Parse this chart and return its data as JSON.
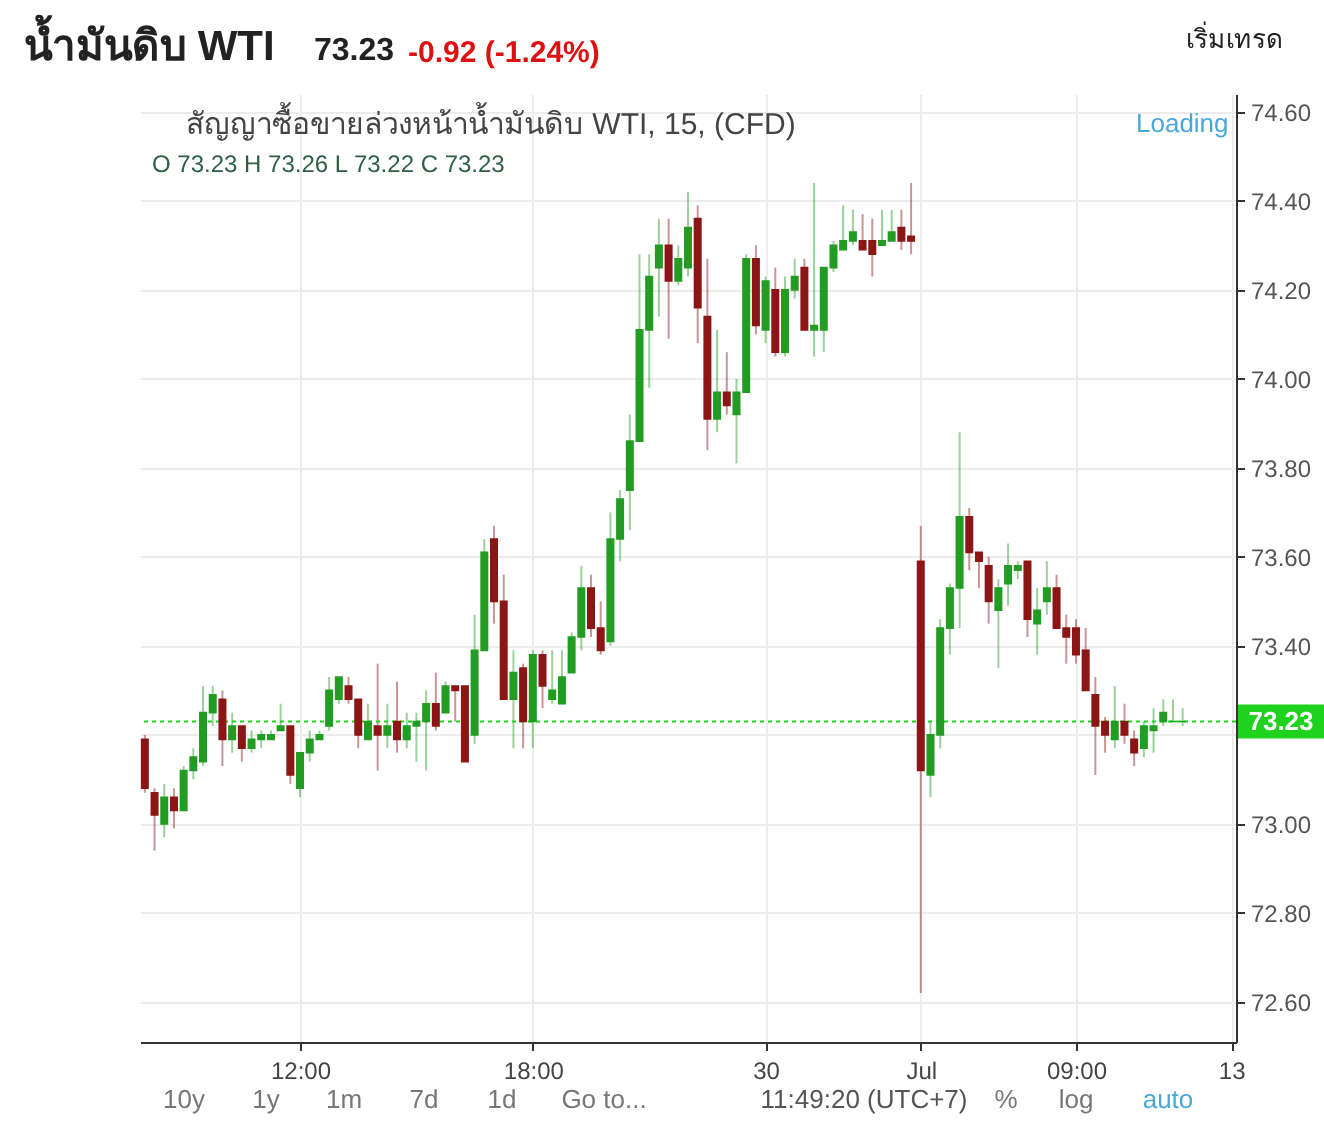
{
  "chart_data": {
    "type": "candlestick",
    "title": "น้ำมันดิบ WTI",
    "subtitle": "สัญญาซื้อขายล่วงหน้าน้ำมันดิบ WTI, 15, (CFD)",
    "annotations": [
      "73.23",
      "-0.92 (-1.24%)",
      "เริ่มเทรด",
      "O 73.23 H 73.26 L 73.22 C 73.23",
      "Loading",
      "10y",
      "1y",
      "1m",
      "7d",
      "1d",
      "Go to...",
      "11:49:20 (UTC+7)",
      "%",
      "log",
      "auto"
    ],
    "categories": [
      null,
      null,
      null,
      null,
      null,
      null,
      null,
      null,
      null,
      null,
      null,
      null,
      null,
      null,
      null,
      null,
      "12:00",
      null,
      null,
      null,
      null,
      null,
      null,
      null,
      null,
      null,
      null,
      null,
      null,
      null,
      null,
      null,
      null,
      null,
      null,
      null,
      null,
      null,
      null,
      null,
      "18:00",
      null,
      null,
      null,
      null,
      null,
      null,
      null,
      null,
      null,
      null,
      null,
      null,
      null,
      null,
      null,
      null,
      null,
      null,
      null,
      null,
      null,
      null,
      null,
      "30",
      null,
      null,
      null,
      null,
      null,
      null,
      null,
      null,
      null,
      null,
      null,
      null,
      null,
      null,
      null,
      "Jul",
      null,
      null,
      null,
      null,
      null,
      null,
      null,
      null,
      null,
      null,
      null,
      null,
      null,
      null,
      null,
      "09:00",
      null,
      null,
      null,
      null,
      null,
      null,
      null,
      null,
      null,
      null,
      null,
      null,
      null,
      null,
      null,
      "13"
    ],
    "ohlc": [
      [
        73.19,
        73.2,
        73.07,
        73.08
      ],
      [
        73.07,
        73.08,
        72.94,
        73.02
      ],
      [
        73.0,
        73.09,
        72.97,
        73.06
      ],
      [
        73.06,
        73.08,
        72.99,
        73.03
      ],
      [
        73.03,
        73.13,
        73.03,
        73.12
      ],
      [
        73.12,
        73.17,
        73.1,
        73.15
      ],
      [
        73.14,
        73.31,
        73.13,
        73.25
      ],
      [
        73.25,
        73.31,
        73.22,
        73.29
      ],
      [
        73.28,
        73.3,
        73.13,
        73.19
      ],
      [
        73.19,
        73.25,
        73.16,
        73.22
      ],
      [
        73.22,
        73.22,
        73.14,
        73.17
      ],
      [
        73.17,
        73.21,
        73.16,
        73.19
      ],
      [
        73.19,
        73.21,
        73.17,
        73.2
      ],
      [
        73.19,
        73.21,
        73.19,
        73.2
      ],
      [
        73.21,
        73.27,
        73.21,
        73.22
      ],
      [
        73.22,
        73.22,
        73.09,
        73.11
      ],
      [
        73.08,
        73.16,
        73.06,
        73.16
      ],
      [
        73.16,
        73.21,
        73.14,
        73.19
      ],
      [
        73.19,
        73.21,
        73.19,
        73.2
      ],
      [
        73.22,
        73.33,
        73.21,
        73.3
      ],
      [
        73.28,
        73.33,
        73.27,
        73.33
      ],
      [
        73.31,
        73.33,
        73.27,
        73.28
      ],
      [
        73.28,
        73.28,
        73.17,
        73.2
      ],
      [
        73.19,
        73.27,
        73.19,
        73.23
      ],
      [
        73.22,
        73.36,
        73.12,
        73.2
      ],
      [
        73.2,
        73.27,
        73.17,
        73.22
      ],
      [
        73.23,
        73.32,
        73.16,
        73.19
      ],
      [
        73.19,
        73.25,
        73.17,
        73.22
      ],
      [
        73.22,
        73.25,
        73.14,
        73.23
      ],
      [
        73.23,
        73.3,
        73.12,
        73.27
      ],
      [
        73.27,
        73.34,
        73.21,
        73.22
      ],
      [
        73.25,
        73.32,
        73.25,
        73.31
      ],
      [
        73.31,
        73.31,
        73.23,
        73.3
      ],
      [
        73.31,
        73.31,
        73.14,
        73.14
      ],
      [
        73.2,
        73.47,
        73.18,
        73.39
      ],
      [
        73.39,
        73.64,
        73.39,
        73.61
      ],
      [
        73.64,
        73.67,
        73.45,
        73.5
      ],
      [
        73.5,
        73.56,
        73.28,
        73.28
      ],
      [
        73.28,
        73.39,
        73.17,
        73.34
      ],
      [
        73.35,
        73.36,
        73.17,
        73.23
      ],
      [
        73.23,
        73.39,
        73.17,
        73.38
      ],
      [
        73.38,
        73.39,
        73.26,
        73.31
      ],
      [
        73.28,
        73.39,
        73.27,
        73.3
      ],
      [
        73.27,
        73.39,
        73.27,
        73.33
      ],
      [
        73.34,
        73.43,
        73.34,
        73.42
      ],
      [
        73.42,
        73.58,
        73.39,
        73.53
      ],
      [
        73.53,
        73.56,
        73.42,
        73.44
      ],
      [
        73.44,
        73.5,
        73.38,
        73.39
      ],
      [
        73.41,
        73.7,
        73.4,
        73.64
      ],
      [
        73.64,
        73.75,
        73.59,
        73.73
      ],
      [
        73.75,
        73.92,
        73.66,
        73.86
      ],
      [
        73.86,
        74.28,
        73.86,
        74.11
      ],
      [
        74.11,
        74.28,
        73.98,
        74.23
      ],
      [
        74.25,
        74.36,
        74.14,
        74.3
      ],
      [
        74.3,
        74.36,
        74.09,
        74.22
      ],
      [
        74.22,
        74.3,
        74.21,
        74.27
      ],
      [
        74.25,
        74.42,
        74.23,
        74.34
      ],
      [
        74.36,
        74.39,
        74.08,
        74.16
      ],
      [
        74.14,
        74.27,
        73.84,
        73.91
      ],
      [
        73.91,
        74.11,
        73.88,
        73.97
      ],
      [
        73.97,
        74.06,
        73.92,
        73.94
      ],
      [
        73.92,
        74.0,
        73.81,
        73.97
      ],
      [
        73.97,
        74.28,
        73.97,
        74.27
      ],
      [
        74.27,
        74.3,
        74.1,
        74.12
      ],
      [
        74.11,
        74.23,
        74.08,
        74.22
      ],
      [
        74.2,
        74.25,
        74.05,
        74.06
      ],
      [
        74.06,
        74.23,
        74.05,
        74.2
      ],
      [
        74.2,
        74.27,
        74.18,
        74.23
      ],
      [
        74.25,
        74.27,
        74.11,
        74.11
      ],
      [
        74.11,
        74.44,
        74.05,
        74.12
      ],
      [
        74.11,
        74.25,
        74.06,
        74.25
      ],
      [
        74.25,
        74.31,
        74.24,
        74.3
      ],
      [
        74.29,
        74.39,
        74.29,
        74.31
      ],
      [
        74.31,
        74.38,
        74.3,
        74.33
      ],
      [
        74.31,
        74.37,
        74.29,
        74.29
      ],
      [
        74.31,
        74.36,
        74.23,
        74.28
      ],
      [
        74.3,
        74.38,
        74.3,
        74.31
      ],
      [
        74.31,
        74.38,
        74.31,
        74.33
      ],
      [
        74.34,
        74.38,
        74.29,
        74.31
      ],
      [
        74.32,
        74.44,
        74.28,
        74.31
      ],
      [
        73.59,
        73.67,
        72.62,
        73.12
      ],
      [
        73.11,
        73.23,
        73.06,
        73.2
      ],
      [
        73.2,
        73.46,
        73.17,
        73.44
      ],
      [
        73.44,
        73.54,
        73.38,
        73.53
      ],
      [
        73.53,
        73.88,
        73.44,
        73.69
      ],
      [
        73.69,
        73.71,
        73.57,
        73.61
      ],
      [
        73.61,
        73.61,
        73.53,
        73.59
      ],
      [
        73.58,
        73.6,
        73.45,
        73.5
      ],
      [
        73.48,
        73.55,
        73.35,
        73.53
      ],
      [
        73.54,
        73.63,
        73.49,
        73.58
      ],
      [
        73.57,
        73.59,
        73.55,
        73.58
      ],
      [
        73.59,
        73.59,
        73.42,
        73.46
      ],
      [
        73.45,
        73.53,
        73.38,
        73.48
      ],
      [
        73.5,
        73.59,
        73.47,
        73.53
      ],
      [
        73.53,
        73.56,
        73.44,
        73.44
      ],
      [
        73.44,
        73.47,
        73.36,
        73.42
      ],
      [
        73.44,
        73.46,
        73.36,
        73.38
      ],
      [
        73.39,
        73.44,
        73.3,
        73.3
      ],
      [
        73.29,
        73.33,
        73.11,
        73.22
      ],
      [
        73.23,
        73.24,
        73.16,
        73.2
      ],
      [
        73.19,
        73.31,
        73.17,
        73.23
      ],
      [
        73.23,
        73.27,
        73.18,
        73.2
      ],
      [
        73.19,
        73.21,
        73.13,
        73.16
      ],
      [
        73.17,
        73.23,
        73.15,
        73.22
      ],
      [
        73.21,
        73.26,
        73.16,
        73.22
      ],
      [
        73.23,
        73.28,
        73.22,
        73.25
      ],
      [
        73.23,
        73.28,
        73.23,
        73.23
      ],
      [
        73.23,
        73.26,
        73.22,
        73.23
      ],
      null,
      null,
      null,
      null,
      null
    ],
    "colors": [
      "#8c1515",
      "#8c1515",
      "#229c22",
      "#8c1515",
      "#229c22",
      "#229c22",
      "#229c22",
      "#229c22",
      "#8c1515",
      "#229c22",
      "#8c1515",
      "#229c22",
      "#229c22",
      "#229c22",
      "#229c22",
      "#8c1515",
      "#229c22",
      "#229c22",
      "#229c22",
      "#229c22",
      "#229c22",
      "#8c1515",
      "#8c1515",
      "#229c22",
      "#8c1515",
      "#229c22",
      "#8c1515",
      "#229c22",
      "#229c22",
      "#229c22",
      "#8c1515",
      "#229c22",
      "#8c1515",
      "#8c1515",
      "#229c22",
      "#229c22",
      "#8c1515",
      "#8c1515",
      "#229c22",
      "#8c1515",
      "#229c22",
      "#8c1515",
      "#229c22",
      "#229c22",
      "#229c22",
      "#229c22",
      "#8c1515",
      "#8c1515",
      "#229c22",
      "#229c22",
      "#229c22",
      "#229c22",
      "#229c22",
      "#229c22",
      "#8c1515",
      "#229c22",
      "#229c22",
      "#8c1515",
      "#8c1515",
      "#229c22",
      "#8c1515",
      "#229c22",
      "#229c22",
      "#8c1515",
      "#229c22",
      "#8c1515",
      "#229c22",
      "#229c22",
      "#8c1515",
      "#229c22",
      "#229c22",
      "#229c22",
      "#229c22",
      "#229c22",
      "#8c1515",
      "#8c1515",
      "#229c22",
      "#229c22",
      "#8c1515",
      "#8c1515",
      "#8c1515",
      "#229c22",
      "#229c22",
      "#229c22",
      "#229c22",
      "#8c1515",
      "#8c1515",
      "#8c1515",
      "#229c22",
      "#229c22",
      "#229c22",
      "#8c1515",
      "#229c22",
      "#229c22",
      "#8c1515",
      "#8c1515",
      "#8c1515",
      "#8c1515",
      "#8c1515",
      "#8c1515",
      "#229c22",
      "#8c1515",
      "#8c1515",
      "#229c22",
      "#229c22",
      "#229c22",
      "#229c22",
      "#229c22",
      null,
      null,
      null,
      null,
      null
    ],
    "ylim": [
      72.51,
      74.64
    ],
    "yticks": [
      {
        "value": 72.6,
        "label": "72.60"
      },
      {
        "value": 72.8,
        "label": "72.80"
      },
      {
        "value": 73.0,
        "label": "73.00"
      },
      {
        "value": 73.2,
        "label": null
      },
      {
        "value": 73.4,
        "label": "73.40"
      },
      {
        "value": 73.6,
        "label": "73.60"
      },
      {
        "value": 73.8,
        "label": "73.80"
      },
      {
        "value": 74.0,
        "label": "74.00"
      },
      {
        "value": 74.2,
        "label": "74.20"
      },
      {
        "value": 74.4,
        "label": "74.40"
      },
      {
        "value": 74.6,
        "label": "74.60"
      }
    ],
    "grid": true,
    "ref_lines": [
      {
        "axis": "y",
        "value": 73.23,
        "label": "73.23",
        "color": "#1ed21e",
        "line_style": "dotted"
      }
    ]
  }
}
